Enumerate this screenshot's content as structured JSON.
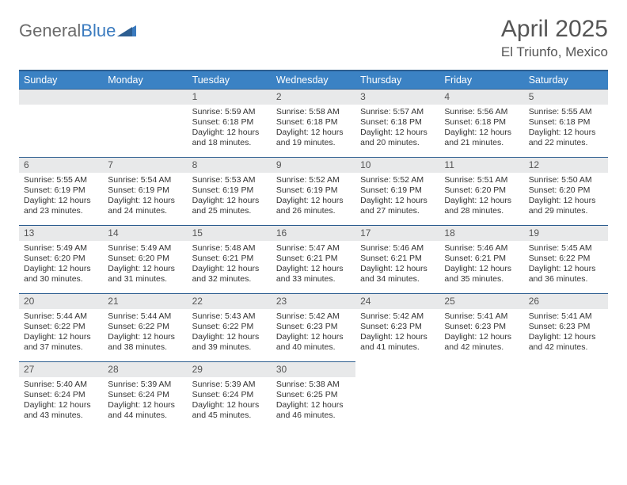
{
  "brand": {
    "part1": "General",
    "part2": "Blue"
  },
  "title": "April 2025",
  "location": "El Triunfo, Mexico",
  "colors": {
    "header_bg": "#3b82c4",
    "header_border": "#2c5d8f",
    "daynum_bg": "#e8e9ea",
    "text": "#333333",
    "title_text": "#555555"
  },
  "weekdays": [
    "Sunday",
    "Monday",
    "Tuesday",
    "Wednesday",
    "Thursday",
    "Friday",
    "Saturday"
  ],
  "first_weekday_index": 2,
  "days": [
    {
      "n": 1,
      "sr": "5:59 AM",
      "ss": "6:18 PM",
      "dl": "12 hours and 18 minutes."
    },
    {
      "n": 2,
      "sr": "5:58 AM",
      "ss": "6:18 PM",
      "dl": "12 hours and 19 minutes."
    },
    {
      "n": 3,
      "sr": "5:57 AM",
      "ss": "6:18 PM",
      "dl": "12 hours and 20 minutes."
    },
    {
      "n": 4,
      "sr": "5:56 AM",
      "ss": "6:18 PM",
      "dl": "12 hours and 21 minutes."
    },
    {
      "n": 5,
      "sr": "5:55 AM",
      "ss": "6:18 PM",
      "dl": "12 hours and 22 minutes."
    },
    {
      "n": 6,
      "sr": "5:55 AM",
      "ss": "6:19 PM",
      "dl": "12 hours and 23 minutes."
    },
    {
      "n": 7,
      "sr": "5:54 AM",
      "ss": "6:19 PM",
      "dl": "12 hours and 24 minutes."
    },
    {
      "n": 8,
      "sr": "5:53 AM",
      "ss": "6:19 PM",
      "dl": "12 hours and 25 minutes."
    },
    {
      "n": 9,
      "sr": "5:52 AM",
      "ss": "6:19 PM",
      "dl": "12 hours and 26 minutes."
    },
    {
      "n": 10,
      "sr": "5:52 AM",
      "ss": "6:19 PM",
      "dl": "12 hours and 27 minutes."
    },
    {
      "n": 11,
      "sr": "5:51 AM",
      "ss": "6:20 PM",
      "dl": "12 hours and 28 minutes."
    },
    {
      "n": 12,
      "sr": "5:50 AM",
      "ss": "6:20 PM",
      "dl": "12 hours and 29 minutes."
    },
    {
      "n": 13,
      "sr": "5:49 AM",
      "ss": "6:20 PM",
      "dl": "12 hours and 30 minutes."
    },
    {
      "n": 14,
      "sr": "5:49 AM",
      "ss": "6:20 PM",
      "dl": "12 hours and 31 minutes."
    },
    {
      "n": 15,
      "sr": "5:48 AM",
      "ss": "6:21 PM",
      "dl": "12 hours and 32 minutes."
    },
    {
      "n": 16,
      "sr": "5:47 AM",
      "ss": "6:21 PM",
      "dl": "12 hours and 33 minutes."
    },
    {
      "n": 17,
      "sr": "5:46 AM",
      "ss": "6:21 PM",
      "dl": "12 hours and 34 minutes."
    },
    {
      "n": 18,
      "sr": "5:46 AM",
      "ss": "6:21 PM",
      "dl": "12 hours and 35 minutes."
    },
    {
      "n": 19,
      "sr": "5:45 AM",
      "ss": "6:22 PM",
      "dl": "12 hours and 36 minutes."
    },
    {
      "n": 20,
      "sr": "5:44 AM",
      "ss": "6:22 PM",
      "dl": "12 hours and 37 minutes."
    },
    {
      "n": 21,
      "sr": "5:44 AM",
      "ss": "6:22 PM",
      "dl": "12 hours and 38 minutes."
    },
    {
      "n": 22,
      "sr": "5:43 AM",
      "ss": "6:22 PM",
      "dl": "12 hours and 39 minutes."
    },
    {
      "n": 23,
      "sr": "5:42 AM",
      "ss": "6:23 PM",
      "dl": "12 hours and 40 minutes."
    },
    {
      "n": 24,
      "sr": "5:42 AM",
      "ss": "6:23 PM",
      "dl": "12 hours and 41 minutes."
    },
    {
      "n": 25,
      "sr": "5:41 AM",
      "ss": "6:23 PM",
      "dl": "12 hours and 42 minutes."
    },
    {
      "n": 26,
      "sr": "5:41 AM",
      "ss": "6:23 PM",
      "dl": "12 hours and 42 minutes."
    },
    {
      "n": 27,
      "sr": "5:40 AM",
      "ss": "6:24 PM",
      "dl": "12 hours and 43 minutes."
    },
    {
      "n": 28,
      "sr": "5:39 AM",
      "ss": "6:24 PM",
      "dl": "12 hours and 44 minutes."
    },
    {
      "n": 29,
      "sr": "5:39 AM",
      "ss": "6:24 PM",
      "dl": "12 hours and 45 minutes."
    },
    {
      "n": 30,
      "sr": "5:38 AM",
      "ss": "6:25 PM",
      "dl": "12 hours and 46 minutes."
    }
  ],
  "labels": {
    "sunrise": "Sunrise:",
    "sunset": "Sunset:",
    "daylight": "Daylight:"
  }
}
